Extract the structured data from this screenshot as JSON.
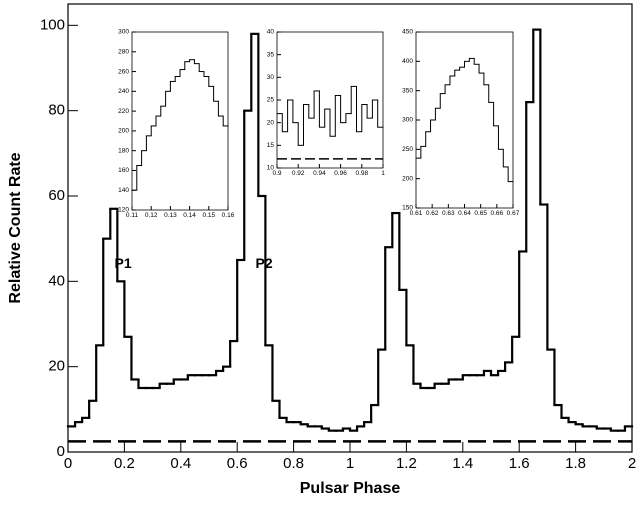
{
  "chart_data": [
    {
      "type": "step",
      "x_label": "Pulsar Phase",
      "y_label": "Relative Count Rate",
      "x": [
        0,
        0.025,
        0.05,
        0.075,
        0.1,
        0.125,
        0.15,
        0.175,
        0.2,
        0.225,
        0.25,
        0.275,
        0.3,
        0.325,
        0.35,
        0.375,
        0.4,
        0.425,
        0.45,
        0.475,
        0.5,
        0.525,
        0.55,
        0.575,
        0.6,
        0.625,
        0.65,
        0.675,
        0.7,
        0.725,
        0.75,
        0.775,
        0.8,
        0.825,
        0.85,
        0.875,
        0.9,
        0.925,
        0.95,
        0.975,
        1,
        1.025,
        1.05,
        1.075,
        1.1,
        1.125,
        1.15,
        1.175,
        1.2,
        1.225,
        1.25,
        1.275,
        1.3,
        1.325,
        1.35,
        1.375,
        1.4,
        1.425,
        1.45,
        1.475,
        1.5,
        1.525,
        1.55,
        1.575,
        1.6,
        1.625,
        1.65,
        1.675,
        1.7,
        1.725,
        1.75,
        1.775,
        1.8,
        1.825,
        1.85,
        1.875,
        1.9,
        1.925,
        1.95,
        1.975
      ],
      "values": [
        6,
        7,
        8,
        12,
        25,
        50,
        57,
        40,
        27,
        17,
        15,
        15,
        15,
        16,
        16,
        17,
        17,
        18,
        18,
        18,
        18,
        19,
        20,
        26,
        45,
        80,
        98,
        60,
        25,
        12,
        8,
        7,
        7,
        6.5,
        6,
        6,
        5.5,
        5,
        5,
        5.5,
        5,
        6,
        7,
        11,
        24,
        48,
        56,
        38,
        25,
        16,
        15,
        15,
        16,
        16,
        17,
        17,
        18,
        18,
        18,
        19,
        18,
        19,
        21,
        27,
        47,
        82,
        99,
        58,
        24,
        11,
        8,
        7,
        6.5,
        6,
        6,
        5.5,
        5.5,
        5,
        5,
        6
      ],
      "color": "#000000",
      "background_level": 2.5,
      "xlim": [
        0,
        2
      ],
      "ylim": [
        0,
        105
      ],
      "xticks": [
        0,
        0.2,
        0.4,
        0.6,
        0.8,
        1,
        1.2,
        1.4,
        1.6,
        1.8,
        2
      ],
      "yticks": [
        0,
        20,
        40,
        60,
        80,
        100
      ],
      "annotations": [
        {
          "text": "P1",
          "x": 0.165,
          "y": 44
        },
        {
          "text": "P2",
          "x": 0.665,
          "y": 44
        }
      ]
    },
    {
      "type": "step",
      "x": [
        0.11,
        0.1125,
        0.115,
        0.1175,
        0.12,
        0.1225,
        0.125,
        0.1275,
        0.13,
        0.1325,
        0.135,
        0.1375,
        0.14,
        0.1425,
        0.145,
        0.1475,
        0.15,
        0.1525,
        0.155,
        0.1575
      ],
      "values": [
        140,
        165,
        180,
        195,
        205,
        215,
        225,
        240,
        250,
        255,
        262,
        270,
        272,
        268,
        260,
        255,
        245,
        230,
        215,
        205
      ],
      "color": "#000000",
      "xlim": [
        0.11,
        0.16
      ],
      "ylim": [
        120,
        300
      ],
      "xticks": [
        0.11,
        0.12,
        0.13,
        0.14,
        0.15,
        0.16
      ],
      "yticks": [
        120,
        140,
        160,
        180,
        200,
        220,
        240,
        260,
        280,
        300
      ]
    },
    {
      "type": "step",
      "x": [
        0.9,
        0.905,
        0.91,
        0.915,
        0.92,
        0.925,
        0.93,
        0.935,
        0.94,
        0.945,
        0.95,
        0.955,
        0.96,
        0.965,
        0.97,
        0.975,
        0.98,
        0.985,
        0.99,
        0.995
      ],
      "values": [
        22,
        18,
        25,
        20,
        15,
        24,
        21,
        27,
        19,
        23,
        17,
        26,
        20,
        22,
        28,
        18,
        24,
        21,
        25,
        19
      ],
      "color": "#000000",
      "background_level": 12,
      "xlim": [
        0.9,
        1
      ],
      "ylim": [
        10,
        40
      ],
      "xticks": [
        0.9,
        0.92,
        0.94,
        0.96,
        0.98,
        1
      ],
      "yticks": [
        10,
        15,
        20,
        25,
        30,
        35,
        40
      ]
    },
    {
      "type": "step",
      "x": [
        0.61,
        0.613,
        0.616,
        0.619,
        0.622,
        0.625,
        0.628,
        0.631,
        0.634,
        0.637,
        0.64,
        0.643,
        0.646,
        0.649,
        0.652,
        0.655,
        0.658,
        0.661,
        0.664,
        0.667
      ],
      "values": [
        235,
        255,
        280,
        300,
        320,
        345,
        360,
        375,
        385,
        390,
        400,
        405,
        395,
        380,
        360,
        330,
        290,
        250,
        220,
        195
      ],
      "color": "#000000",
      "xlim": [
        0.61,
        0.67
      ],
      "ylim": [
        150,
        450
      ],
      "xticks": [
        0.61,
        0.62,
        0.63,
        0.64,
        0.65,
        0.66,
        0.67
      ],
      "yticks": [
        150,
        200,
        250,
        300,
        350,
        400,
        450
      ]
    }
  ]
}
